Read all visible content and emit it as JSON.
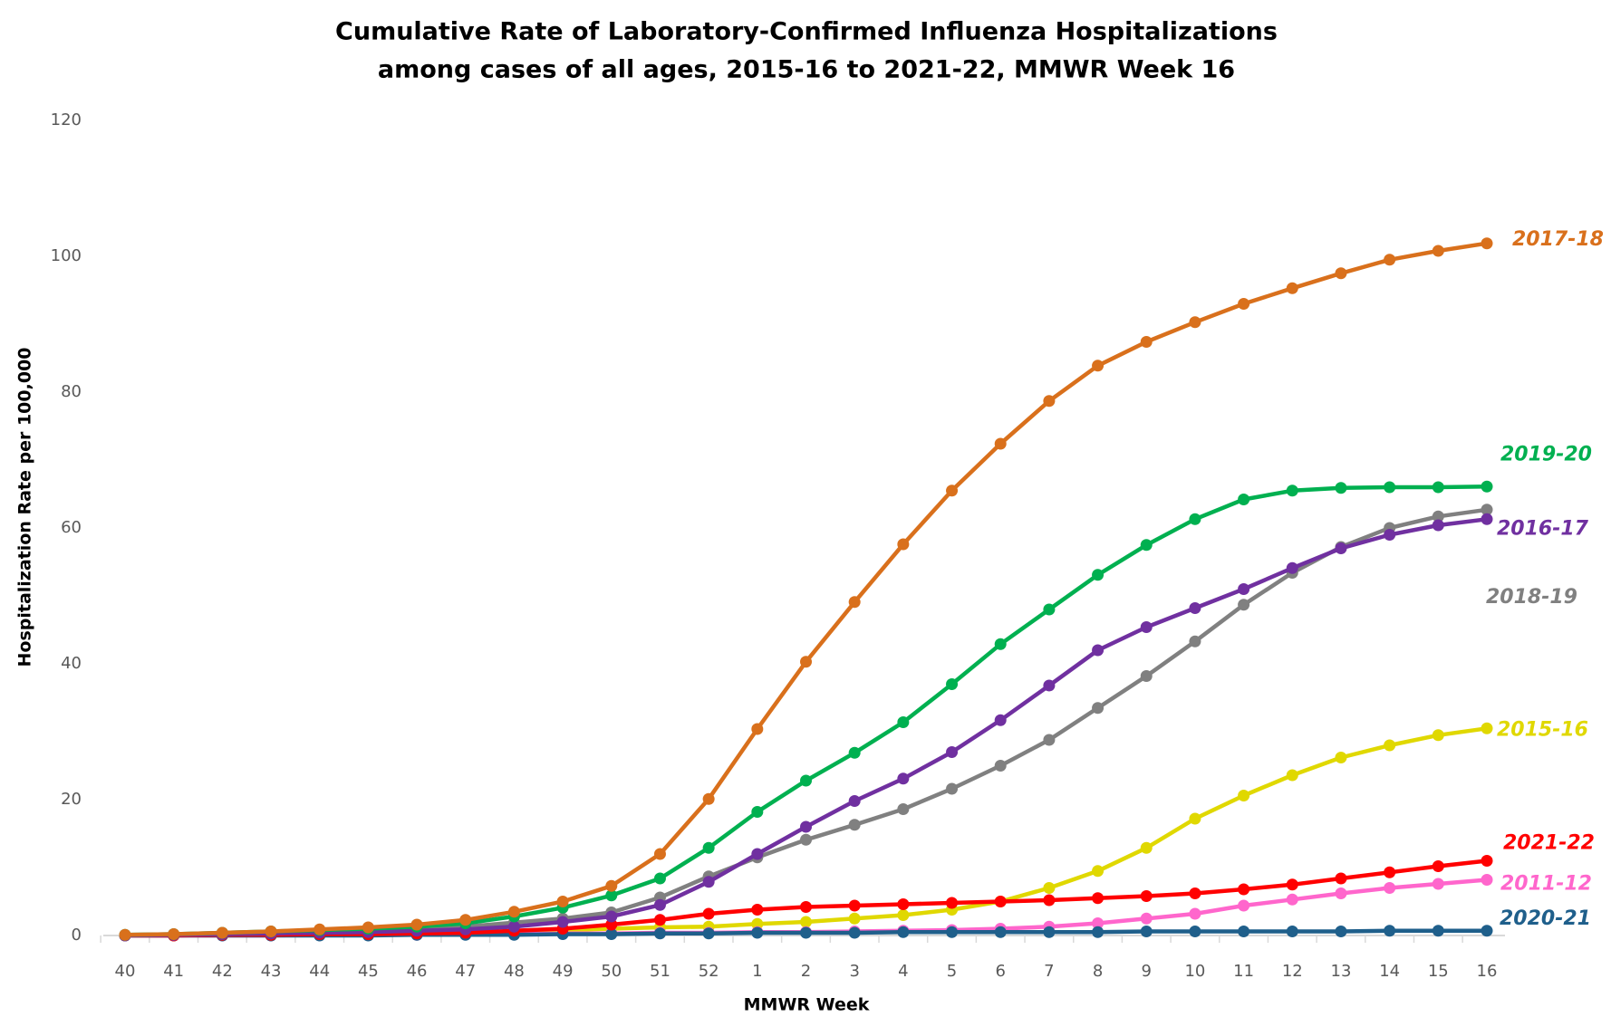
{
  "chart_data": {
    "type": "line",
    "title": [
      "Cumulative Rate of Laboratory-Confirmed Influenza Hospitalizations",
      "among cases of all ages, 2015-16 to 2021-22, MMWR  Week 16"
    ],
    "x_label": "MMWR Week",
    "y_label": "Hospitalization  Rate per 100,000",
    "categories": [
      "40",
      "41",
      "42",
      "43",
      "44",
      "45",
      "46",
      "47",
      "48",
      "49",
      "50",
      "51",
      "52",
      "1",
      "2",
      "3",
      "4",
      "5",
      "6",
      "7",
      "8",
      "9",
      "10",
      "11",
      "12",
      "13",
      "14",
      "15",
      "16"
    ],
    "ylim": [
      0,
      120
    ],
    "yticks": [
      0,
      20,
      40,
      60,
      80,
      100,
      120
    ],
    "grid": false,
    "series": [
      {
        "name": "2017-18",
        "color": "#d9701c",
        "values": [
          0.1,
          0.2,
          0.4,
          0.6,
          0.9,
          1.2,
          1.6,
          2.3,
          3.5,
          5,
          7.3,
          12,
          20.1,
          30.4,
          40.3,
          49.1,
          57.6,
          65.5,
          72.4,
          78.7,
          83.9,
          87.4,
          90.3,
          93,
          95.3,
          97.5,
          99.5,
          100.8,
          101.9
        ]
      },
      {
        "name": "2019-20",
        "color": "#00b050",
        "values": [
          0.1,
          0.2,
          0.4,
          0.6,
          0.8,
          1.0,
          1.3,
          1.8,
          2.8,
          4.1,
          5.9,
          8.4,
          12.9,
          18.2,
          22.8,
          26.9,
          31.4,
          37,
          42.9,
          48,
          53.1,
          57.5,
          61.3,
          64.2,
          65.5,
          65.9,
          66,
          66,
          66.1
        ]
      },
      {
        "name": "2016-17",
        "color": "#7030a0",
        "values": [
          0,
          0.1,
          0.2,
          0.3,
          0.4,
          0.5,
          0.7,
          0.9,
          1.3,
          2,
          2.8,
          4.5,
          7.9,
          12,
          16,
          19.8,
          23.1,
          27,
          31.7,
          36.8,
          42,
          45.4,
          48.2,
          51,
          54.1,
          57,
          59,
          60.4,
          61.3
        ]
      },
      {
        "name": "2018-19",
        "color": "#808080",
        "values": [
          0,
          0.1,
          0.2,
          0.3,
          0.5,
          0.7,
          1,
          1.3,
          1.9,
          2.5,
          3.4,
          5.6,
          8.7,
          11.5,
          14.1,
          16.3,
          18.6,
          21.6,
          25,
          28.8,
          33.5,
          38.2,
          43.3,
          48.7,
          53.4,
          57.2,
          60,
          61.7,
          62.7
        ]
      },
      {
        "name": "2015-16",
        "color": "#e0d800",
        "values": [
          0,
          0,
          0.1,
          0.1,
          0.2,
          0.3,
          0.4,
          0.5,
          0.6,
          0.8,
          1,
          1.2,
          1.3,
          1.7,
          2,
          2.5,
          3,
          3.8,
          5,
          7,
          9.5,
          12.9,
          17.2,
          20.6,
          23.6,
          26.2,
          28,
          29.5,
          30.5
        ]
      },
      {
        "name": "2011-12",
        "color": "#ff66cc",
        "values": [
          0,
          0,
          0,
          0,
          0.1,
          0.1,
          0.1,
          0.2,
          0.2,
          0.3,
          0.3,
          0.4,
          0.4,
          0.5,
          0.5,
          0.6,
          0.7,
          0.8,
          1,
          1.3,
          1.8,
          2.5,
          3.2,
          4.4,
          5.3,
          6.2,
          7,
          7.6,
          8.2
        ]
      },
      {
        "name": "2020-21",
        "color": "#1f5f8b",
        "values": [
          0,
          0,
          0,
          0,
          0,
          0,
          0.1,
          0.1,
          0.1,
          0.2,
          0.2,
          0.3,
          0.3,
          0.4,
          0.4,
          0.4,
          0.5,
          0.5,
          0.5,
          0.5,
          0.5,
          0.6,
          0.6,
          0.6,
          0.6,
          0.6,
          0.7,
          0.7,
          0.7
        ]
      },
      {
        "name": "2021-22",
        "color": "#ff0000",
        "values": [
          0,
          0,
          0.1,
          0.1,
          0.2,
          0.2,
          0.3,
          0.4,
          0.7,
          1,
          1.6,
          2.3,
          3.2,
          3.8,
          4.2,
          4.4,
          4.6,
          4.8,
          5,
          5.2,
          5.5,
          5.8,
          6.2,
          6.8,
          7.5,
          8.4,
          9.3,
          10.2,
          11
        ]
      }
    ]
  }
}
